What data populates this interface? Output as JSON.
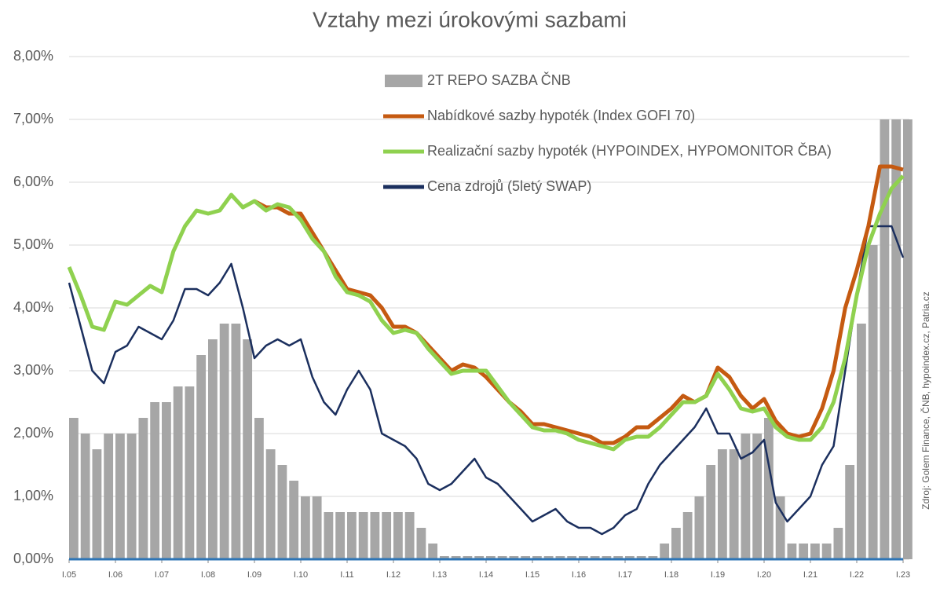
{
  "chart_data": {
    "type": "line",
    "title": "Vztahy mezi úrokovými sazbami",
    "source": "Zdroj: Golem Finance, ČNB, hypoindex.cz,  Patria.cz",
    "x": [
      2005,
      2005.25,
      2005.5,
      2005.75,
      2006,
      2006.25,
      2006.5,
      2006.75,
      2007,
      2007.25,
      2007.5,
      2007.75,
      2008,
      2008.25,
      2008.5,
      2008.75,
      2009,
      2009.25,
      2009.5,
      2009.75,
      2010,
      2010.25,
      2010.5,
      2010.75,
      2011,
      2011.25,
      2011.5,
      2011.75,
      2012,
      2012.25,
      2012.5,
      2012.75,
      2013,
      2013.25,
      2013.5,
      2013.75,
      2014,
      2014.25,
      2014.5,
      2014.75,
      2015,
      2015.25,
      2015.5,
      2015.75,
      2016,
      2016.25,
      2016.5,
      2016.75,
      2017,
      2017.25,
      2017.5,
      2017.75,
      2018,
      2018.25,
      2018.5,
      2018.75,
      2019,
      2019.25,
      2019.5,
      2019.75,
      2020,
      2020.25,
      2020.5,
      2020.75,
      2021,
      2021.25,
      2021.5,
      2021.75,
      2022,
      2022.25,
      2022.5,
      2022.75,
      2023
    ],
    "series": [
      {
        "name": "2T REPO SAZBA ČNB",
        "kind": "bar",
        "color": "#a6a6a6",
        "values": [
          2.25,
          2,
          1.75,
          2,
          2,
          2,
          2.25,
          2.5,
          2.5,
          2.75,
          2.75,
          3.25,
          3.5,
          3.75,
          3.75,
          3.5,
          2.25,
          1.75,
          1.5,
          1.25,
          1,
          1,
          0.75,
          0.75,
          0.75,
          0.75,
          0.75,
          0.75,
          0.75,
          0.75,
          0.5,
          0.25,
          0.05,
          0.05,
          0.05,
          0.05,
          0.05,
          0.05,
          0.05,
          0.05,
          0.05,
          0.05,
          0.05,
          0.05,
          0.05,
          0.05,
          0.05,
          0.05,
          0.05,
          0.05,
          0.05,
          0.25,
          0.5,
          0.75,
          1,
          1.5,
          1.75,
          1.75,
          2,
          2,
          2.25,
          1,
          0.25,
          0.25,
          0.25,
          0.25,
          0.5,
          1.5,
          3.75,
          5,
          7,
          7,
          7
        ]
      },
      {
        "name": "Nabídkové sazby hypoték (Index GOFI 70)",
        "kind": "line",
        "color": "#c55a11",
        "values": [
          null,
          null,
          null,
          null,
          null,
          null,
          null,
          null,
          null,
          null,
          null,
          null,
          null,
          null,
          null,
          null,
          5.7,
          5.6,
          5.6,
          5.5,
          5.5,
          5.2,
          4.9,
          4.6,
          4.3,
          4.25,
          4.2,
          4,
          3.7,
          3.7,
          3.6,
          3.4,
          3.2,
          3,
          3.1,
          3.05,
          2.9,
          2.7,
          2.5,
          2.35,
          2.15,
          2.15,
          2.1,
          2.05,
          2,
          1.95,
          1.85,
          1.85,
          1.95,
          2.1,
          2.1,
          2.25,
          2.4,
          2.6,
          2.5,
          2.6,
          3.05,
          2.9,
          2.6,
          2.4,
          2.55,
          2.2,
          2,
          1.95,
          2,
          2.4,
          3,
          4,
          4.6,
          5.3,
          6.25,
          6.25,
          6.2
        ]
      },
      {
        "name": "Realizační sazby hypoték (HYPOINDEX, HYPOMONITOR ČBA)",
        "kind": "line",
        "color": "#8fd14f",
        "values": [
          4.65,
          4.2,
          3.7,
          3.65,
          4.1,
          4.05,
          4.2,
          4.35,
          4.25,
          4.9,
          5.3,
          5.55,
          5.5,
          5.55,
          5.8,
          5.6,
          5.7,
          5.55,
          5.65,
          5.6,
          5.4,
          5.1,
          4.9,
          4.5,
          4.25,
          4.2,
          4.1,
          3.8,
          3.6,
          3.65,
          3.6,
          3.35,
          3.15,
          2.95,
          3,
          3,
          3,
          2.75,
          2.5,
          2.3,
          2.1,
          2.05,
          2.05,
          2,
          1.9,
          1.85,
          1.8,
          1.75,
          1.9,
          1.95,
          1.95,
          2.1,
          2.3,
          2.5,
          2.5,
          2.6,
          2.95,
          2.7,
          2.4,
          2.35,
          2.4,
          2.1,
          1.95,
          1.9,
          1.9,
          2.1,
          2.5,
          3.2,
          4.2,
          5,
          5.5,
          5.9,
          6.1
        ]
      },
      {
        "name": "Cena zdrojů (5letý SWAP)",
        "kind": "line",
        "color": "#1b2f5e",
        "values": [
          4.4,
          3.7,
          3,
          2.8,
          3.3,
          3.4,
          3.7,
          3.6,
          3.5,
          3.8,
          4.3,
          4.3,
          4.2,
          4.4,
          4.7,
          4,
          3.2,
          3.4,
          3.5,
          3.4,
          3.5,
          2.9,
          2.5,
          2.3,
          2.7,
          3,
          2.7,
          2,
          1.9,
          1.8,
          1.6,
          1.2,
          1.1,
          1.2,
          1.4,
          1.6,
          1.3,
          1.2,
          1,
          0.8,
          0.6,
          0.7,
          0.8,
          0.6,
          0.5,
          0.5,
          0.4,
          0.5,
          0.7,
          0.8,
          1.2,
          1.5,
          1.7,
          1.9,
          2.1,
          2.4,
          2,
          2,
          1.6,
          1.7,
          1.9,
          0.9,
          0.6,
          0.8,
          1,
          1.5,
          1.8,
          3,
          4.2,
          5.3,
          5.3,
          5.3,
          4.8
        ]
      }
    ],
    "xlim": [
      2005,
      2023
    ],
    "xticks": [
      {
        "value": 2005,
        "label": "I.05"
      },
      {
        "value": 2006,
        "label": "I.06"
      },
      {
        "value": 2007,
        "label": "I.07"
      },
      {
        "value": 2008,
        "label": "I.08"
      },
      {
        "value": 2009,
        "label": "I.09"
      },
      {
        "value": 2010,
        "label": "I.10"
      },
      {
        "value": 2011,
        "label": "I.11"
      },
      {
        "value": 2012,
        "label": "I.12"
      },
      {
        "value": 2013,
        "label": "I.13"
      },
      {
        "value": 2014,
        "label": "I.14"
      },
      {
        "value": 2015,
        "label": "I.15"
      },
      {
        "value": 2016,
        "label": "I.16"
      },
      {
        "value": 2017,
        "label": "I.17"
      },
      {
        "value": 2018,
        "label": "I.18"
      },
      {
        "value": 2019,
        "label": "I.19"
      },
      {
        "value": 2020,
        "label": "I.20"
      },
      {
        "value": 2021,
        "label": "I.21"
      },
      {
        "value": 2022,
        "label": "I.22"
      },
      {
        "value": 2023,
        "label": "I.23"
      }
    ],
    "ylim": [
      0,
      8
    ],
    "yticks": [
      {
        "value": 0,
        "label": "0,00%"
      },
      {
        "value": 1,
        "label": "1,00%"
      },
      {
        "value": 2,
        "label": "2,00%"
      },
      {
        "value": 3,
        "label": "3,00%"
      },
      {
        "value": 4,
        "label": "4,00%"
      },
      {
        "value": 5,
        "label": "5,00%"
      },
      {
        "value": 6,
        "label": "6,00%"
      },
      {
        "value": 7,
        "label": "7,00%"
      },
      {
        "value": 8,
        "label": "8,00%"
      }
    ],
    "grid": true
  }
}
